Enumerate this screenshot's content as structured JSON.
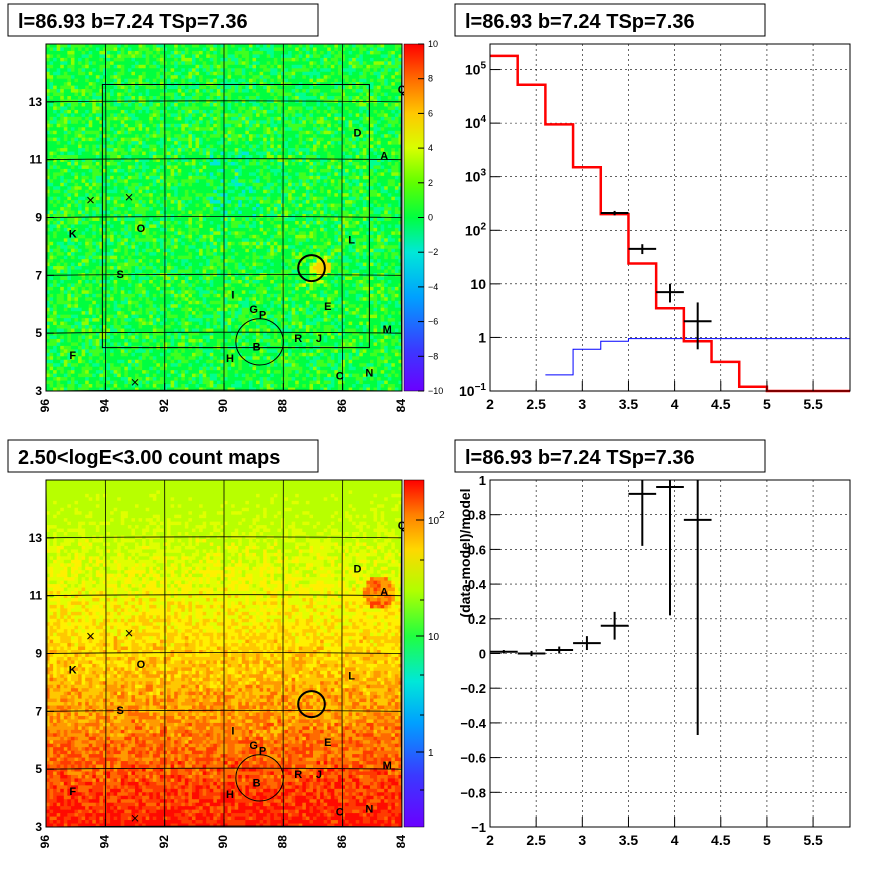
{
  "chart_data": [
    {
      "id": "skymap_residual",
      "type": "heatmap",
      "title": "l=86.93 b=7.24 TSp=7.36",
      "x_ticks": [
        "96",
        "94",
        "92",
        "90",
        "88",
        "86",
        "84"
      ],
      "y_ticks": [
        "13",
        "11",
        "9",
        "7",
        "5",
        "3"
      ],
      "xlim": [
        96,
        84
      ],
      "ylim": [
        3,
        15
      ],
      "colorbar_ticks": [
        "10",
        "8",
        "6",
        "4",
        "2",
        "0",
        "−2",
        "−4",
        "−6",
        "−8",
        "−10"
      ],
      "colorbar_range": [
        -10,
        10
      ],
      "source_labels": [
        {
          "t": "Q",
          "l": 84.0,
          "b": 13.3
        },
        {
          "t": "D",
          "l": 85.5,
          "b": 11.8
        },
        {
          "t": "A",
          "l": 84.6,
          "b": 11.0
        },
        {
          "t": "K",
          "l": 95.1,
          "b": 8.3
        },
        {
          "t": "O",
          "l": 92.8,
          "b": 8.5
        },
        {
          "t": "L",
          "l": 85.7,
          "b": 8.1
        },
        {
          "t": "S",
          "l": 93.5,
          "b": 6.9
        },
        {
          "t": "I",
          "l": 89.7,
          "b": 6.2
        },
        {
          "t": "E",
          "l": 86.5,
          "b": 5.8
        },
        {
          "t": "G",
          "l": 89.0,
          "b": 5.7
        },
        {
          "t": "P",
          "l": 88.7,
          "b": 5.5
        },
        {
          "t": "M",
          "l": 84.5,
          "b": 5.0
        },
        {
          "t": "R",
          "l": 87.5,
          "b": 4.7
        },
        {
          "t": "J",
          "l": 86.8,
          "b": 4.7
        },
        {
          "t": "B",
          "l": 88.9,
          "b": 4.4
        },
        {
          "t": "F",
          "l": 95.1,
          "b": 4.1
        },
        {
          "t": "H",
          "l": 89.8,
          "b": 4.0
        },
        {
          "t": "C",
          "l": 86.1,
          "b": 3.4
        },
        {
          "t": "N",
          "l": 85.1,
          "b": 3.5
        }
      ],
      "crosses": [
        {
          "l": 94.5,
          "b": 9.6
        },
        {
          "l": 93.2,
          "b": 9.7
        },
        {
          "l": 93.0,
          "b": 3.3
        }
      ],
      "circles": [
        {
          "l": 87.05,
          "b": 7.25,
          "r": 0.45,
          "width": 2
        },
        {
          "l": 88.8,
          "b": 4.7,
          "r": 0.8,
          "width": 1
        }
      ]
    },
    {
      "id": "spectrum",
      "type": "line",
      "title": "l=86.93 b=7.24 TSp=7.36",
      "x_ticks": [
        "2",
        "2.5",
        "3",
        "3.5",
        "4",
        "4.5",
        "5",
        "5.5"
      ],
      "xlim": [
        2,
        5.9
      ],
      "ylim": [
        0.1,
        300000
      ],
      "yscale": "log",
      "y_ticks": [
        {
          "base": "10",
          "exp": "−1",
          "v": 0.1
        },
        {
          "base": "1",
          "exp": "",
          "v": 1
        },
        {
          "base": "10",
          "exp": "",
          "v": 10
        },
        {
          "base": "10",
          "exp": "2",
          "v": 100
        },
        {
          "base": "10",
          "exp": "3",
          "v": 1000
        },
        {
          "base": "10",
          "exp": "4",
          "v": 10000
        },
        {
          "base": "10",
          "exp": "5",
          "v": 100000
        }
      ],
      "model_total_step": {
        "color": "#ff0000",
        "edges": [
          2.0,
          2.3,
          2.6,
          2.9,
          3.2,
          3.5,
          3.8,
          4.1,
          4.4,
          4.7,
          5.0,
          5.9
        ],
        "values": [
          180000,
          52000,
          9500,
          1500,
          200,
          24,
          3.5,
          0.85,
          0.35,
          0.12,
          0.1
        ]
      },
      "model_source_step": {
        "color": "#0000ff",
        "edges": [
          2.6,
          2.9,
          3.2,
          3.5,
          5.9
        ],
        "values": [
          0.2,
          0.6,
          0.85,
          0.95
        ]
      },
      "data_points": [
        {
          "x": 3.35,
          "y": 210,
          "xerr": 0.15,
          "lo": 190,
          "hi": 230
        },
        {
          "x": 3.65,
          "y": 45,
          "xerr": 0.15,
          "lo": 36,
          "hi": 55
        },
        {
          "x": 3.95,
          "y": 7,
          "xerr": 0.15,
          "lo": 4.5,
          "hi": 10
        },
        {
          "x": 4.25,
          "y": 2,
          "xerr": 0.15,
          "lo": 0.6,
          "hi": 4.5
        }
      ]
    },
    {
      "id": "count_map",
      "type": "heatmap",
      "title": "2.50<logE<3.00 count maps",
      "x_ticks": [
        "96",
        "94",
        "92",
        "90",
        "88",
        "86",
        "84"
      ],
      "y_ticks": [
        "13",
        "11",
        "9",
        "7",
        "5",
        "3"
      ],
      "xlim": [
        96,
        84
      ],
      "ylim": [
        3,
        15
      ],
      "colorbar_ticks": [
        {
          "base": "10",
          "exp": "2"
        },
        {
          "base": "10",
          "exp": ""
        },
        {
          "base": "1",
          "exp": ""
        }
      ],
      "source_labels": [
        {
          "t": "Q",
          "l": 84.0,
          "b": 13.3
        },
        {
          "t": "D",
          "l": 85.5,
          "b": 11.8
        },
        {
          "t": "A",
          "l": 84.6,
          "b": 11.0
        },
        {
          "t": "K",
          "l": 95.1,
          "b": 8.3
        },
        {
          "t": "O",
          "l": 92.8,
          "b": 8.5
        },
        {
          "t": "L",
          "l": 85.7,
          "b": 8.1
        },
        {
          "t": "S",
          "l": 93.5,
          "b": 6.9
        },
        {
          "t": "I",
          "l": 89.7,
          "b": 6.2
        },
        {
          "t": "E",
          "l": 86.5,
          "b": 5.8
        },
        {
          "t": "G",
          "l": 89.0,
          "b": 5.7
        },
        {
          "t": "P",
          "l": 88.7,
          "b": 5.5
        },
        {
          "t": "M",
          "l": 84.5,
          "b": 5.0
        },
        {
          "t": "R",
          "l": 87.5,
          "b": 4.7
        },
        {
          "t": "J",
          "l": 86.8,
          "b": 4.7
        },
        {
          "t": "B",
          "l": 88.9,
          "b": 4.4
        },
        {
          "t": "F",
          "l": 95.1,
          "b": 4.1
        },
        {
          "t": "H",
          "l": 89.8,
          "b": 4.0
        },
        {
          "t": "C",
          "l": 86.1,
          "b": 3.4
        },
        {
          "t": "N",
          "l": 85.1,
          "b": 3.5
        }
      ],
      "crosses": [
        {
          "l": 94.5,
          "b": 9.6
        },
        {
          "l": 93.2,
          "b": 9.7
        },
        {
          "l": 93.0,
          "b": 3.3
        }
      ],
      "circles": [
        {
          "l": 87.05,
          "b": 7.25,
          "r": 0.45,
          "width": 2
        },
        {
          "l": 88.8,
          "b": 4.7,
          "r": 0.8,
          "width": 1
        }
      ]
    },
    {
      "id": "residual_ratio",
      "type": "scatter",
      "title": "l=86.93 b=7.24 TSp=7.36",
      "ylabel": "(data-model)/model",
      "x_ticks": [
        "2",
        "2.5",
        "3",
        "3.5",
        "4",
        "4.5",
        "5",
        "5.5"
      ],
      "y_ticks": [
        "1",
        "0.8",
        "0.6",
        "0.4",
        "0.2",
        "0",
        "−0.2",
        "−0.4",
        "−0.6",
        "−0.8",
        "−1"
      ],
      "xlim": [
        2,
        5.9
      ],
      "ylim": [
        -1,
        1
      ],
      "points": [
        {
          "x": 2.15,
          "y": 0.01,
          "xerr": 0.15,
          "lo": 0.0,
          "hi": 0.02
        },
        {
          "x": 2.45,
          "y": 0.0,
          "xerr": 0.15,
          "lo": -0.015,
          "hi": 0.015
        },
        {
          "x": 2.75,
          "y": 0.02,
          "xerr": 0.15,
          "lo": 0.0,
          "hi": 0.04
        },
        {
          "x": 3.05,
          "y": 0.06,
          "xerr": 0.15,
          "lo": 0.02,
          "hi": 0.1
        },
        {
          "x": 3.35,
          "y": 0.16,
          "xerr": 0.15,
          "lo": 0.08,
          "hi": 0.24
        },
        {
          "x": 3.65,
          "y": 0.92,
          "xerr": 0.15,
          "lo": 0.62,
          "hi": 1.0
        },
        {
          "x": 3.95,
          "y": 0.96,
          "xerr": 0.15,
          "lo": 0.22,
          "hi": 1.0
        },
        {
          "x": 4.25,
          "y": 0.77,
          "xerr": 0.15,
          "lo": -0.47,
          "hi": 1.0
        }
      ]
    }
  ]
}
